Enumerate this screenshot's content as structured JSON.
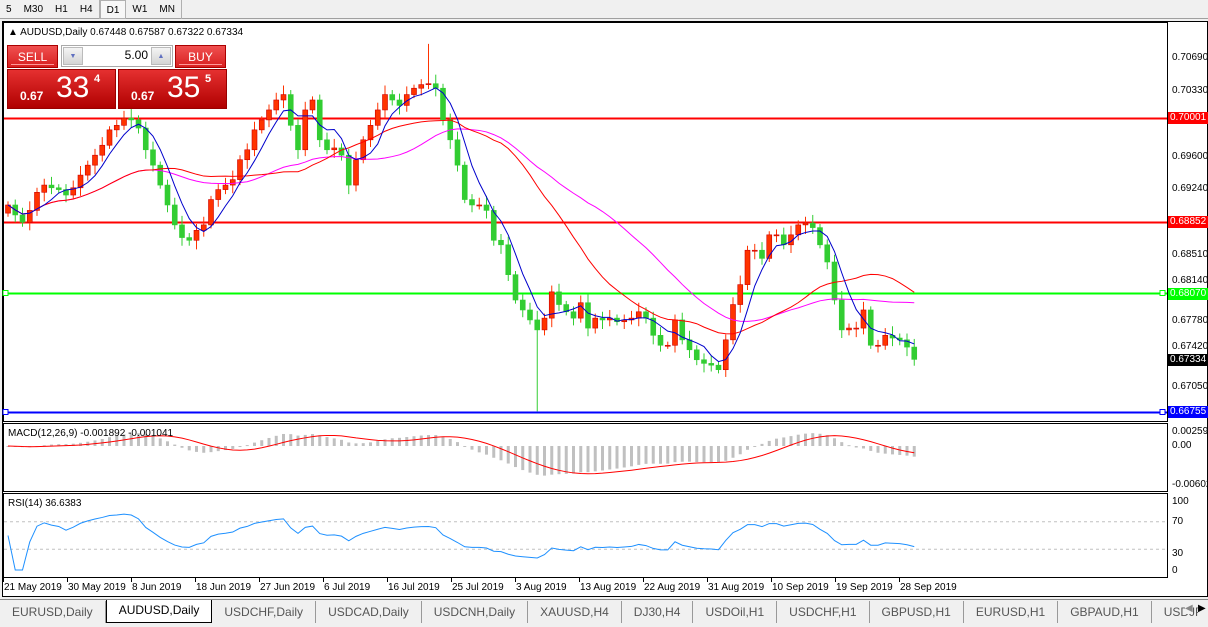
{
  "toolbar": {
    "timeframes": [
      "5",
      "M30",
      "H1",
      "H4",
      "D1",
      "W1",
      "MN"
    ],
    "active": "D1"
  },
  "chart": {
    "symbol_title": "AUDUSD,Daily",
    "ohlc_readout": "0.67448 0.67587 0.67322 0.67334",
    "trade_panel": {
      "sell_label": "SELL",
      "buy_label": "BUY",
      "lots": "5.00",
      "sell_prefix": "0.67",
      "sell_big": "33",
      "sell_sup": "4",
      "buy_prefix": "0.67",
      "buy_big": "35",
      "buy_sup": "5"
    },
    "price_axis": [
      "0.70690",
      "0.70330",
      "0.69600",
      "0.69240",
      "0.68510",
      "0.68140",
      "0.67780",
      "0.67420",
      "0.67050"
    ],
    "hlines": [
      {
        "price": 0.70001,
        "label": "0.70001",
        "color": "#ff0000"
      },
      {
        "price": 0.68852,
        "label": "0.68852",
        "color": "#ff0000"
      },
      {
        "price": 0.6807,
        "label": "0.68070",
        "color": "#00ff00"
      },
      {
        "price": 0.66755,
        "label": "0.66755",
        "color": "#0000ff"
      }
    ],
    "current_price": "0.67334",
    "colors": {
      "bull": "#ff3300",
      "bear": "#32cd32",
      "ma_fast": "#0000cc",
      "ma_mid": "#ff0000",
      "ma_slow": "#ff00ff"
    }
  },
  "chart_data": {
    "type": "candlestick",
    "first_open": 0.6895,
    "close": [
      0.6904,
      0.6893,
      0.6885,
      0.6898,
      0.6918,
      0.6926,
      0.6923,
      0.6921,
      0.6915,
      0.6923,
      0.6937,
      0.6948,
      0.6959,
      0.697,
      0.6987,
      0.6992,
      0.7,
      0.6998,
      0.6989,
      0.6965,
      0.6948,
      0.6926,
      0.6904,
      0.6882,
      0.6868,
      0.6865,
      0.6876,
      0.6882,
      0.691,
      0.6921,
      0.6926,
      0.6932,
      0.6954,
      0.6965,
      0.6987,
      0.6998,
      0.7009,
      0.702,
      0.7026,
      0.6992,
      0.6965,
      0.7009,
      0.702,
      0.6976,
      0.6965,
      0.6967,
      0.6959,
      0.6926,
      0.6954,
      0.6976,
      0.6992,
      0.7009,
      0.7026,
      0.702,
      0.7014,
      0.7026,
      0.7033,
      0.7037,
      0.7038,
      0.7033,
      0.6998,
      0.6976,
      0.6948,
      0.691,
      0.6904,
      0.6904,
      0.6898,
      0.6865,
      0.686,
      0.6827,
      0.6799,
      0.6788,
      0.6777,
      0.6766,
      0.6779,
      0.6808,
      0.6794,
      0.6786,
      0.6779,
      0.6796,
      0.6768,
      0.6779,
      0.6777,
      0.6779,
      0.6775,
      0.6777,
      0.6779,
      0.6786,
      0.6779,
      0.676,
      0.6749,
      0.6749,
      0.6777,
      0.6755,
      0.6744,
      0.6733,
      0.6729,
      0.6727,
      0.6722,
      0.6755,
      0.6794,
      0.6816,
      0.6854,
      0.6854,
      0.6845,
      0.6871,
      0.6871,
      0.686,
      0.6871,
      0.6882,
      0.6884,
      0.6879,
      0.686,
      0.6841,
      0.6799,
      0.6766,
      0.6768,
      0.6768,
      0.6788,
      0.6749,
      0.6749,
      0.676,
      0.6757,
      0.6755,
      0.6747,
      0.67334
    ],
    "notable_extremes": [
      {
        "date": "16 Jul 2019",
        "high": 0.7082
      },
      {
        "date": "3 Aug 2019",
        "low": 0.6676
      }
    ],
    "x_ticks": [
      "21 May 2019",
      "30 May 2019",
      "8 Jun 2019",
      "18 Jun 2019",
      "27 Jun 2019",
      "6 Jul 2019",
      "16 Jul 2019",
      "25 Jul 2019",
      "3 Aug 2019",
      "13 Aug 2019",
      "22 Aug 2019",
      "31 Aug 2019",
      "10 Sep 2019",
      "19 Sep 2019",
      "28 Sep 2019"
    ],
    "ylim": [
      0.666,
      0.7105
    ]
  },
  "macd": {
    "title": "MACD(12,26,9) -0.001892 -0.001041",
    "axis": [
      "0.002592",
      "0.00",
      "-0.00602"
    ]
  },
  "rsi": {
    "title": "RSI(14) 36.6383",
    "axis": [
      "100",
      "70",
      "30",
      "0"
    ]
  },
  "tabs": [
    "EURUSD,Daily",
    "AUDUSD,Daily",
    "USDCHF,Daily",
    "USDCAD,Daily",
    "USDCNH,Daily",
    "XAUUSD,H4",
    "DJ30,H4",
    "USDOil,H1",
    "USDCHF,H1",
    "GBPUSD,H1",
    "EURUSD,H1",
    "GBPAUD,H1",
    "USDJP"
  ],
  "active_tab": "AUDUSD,Daily"
}
